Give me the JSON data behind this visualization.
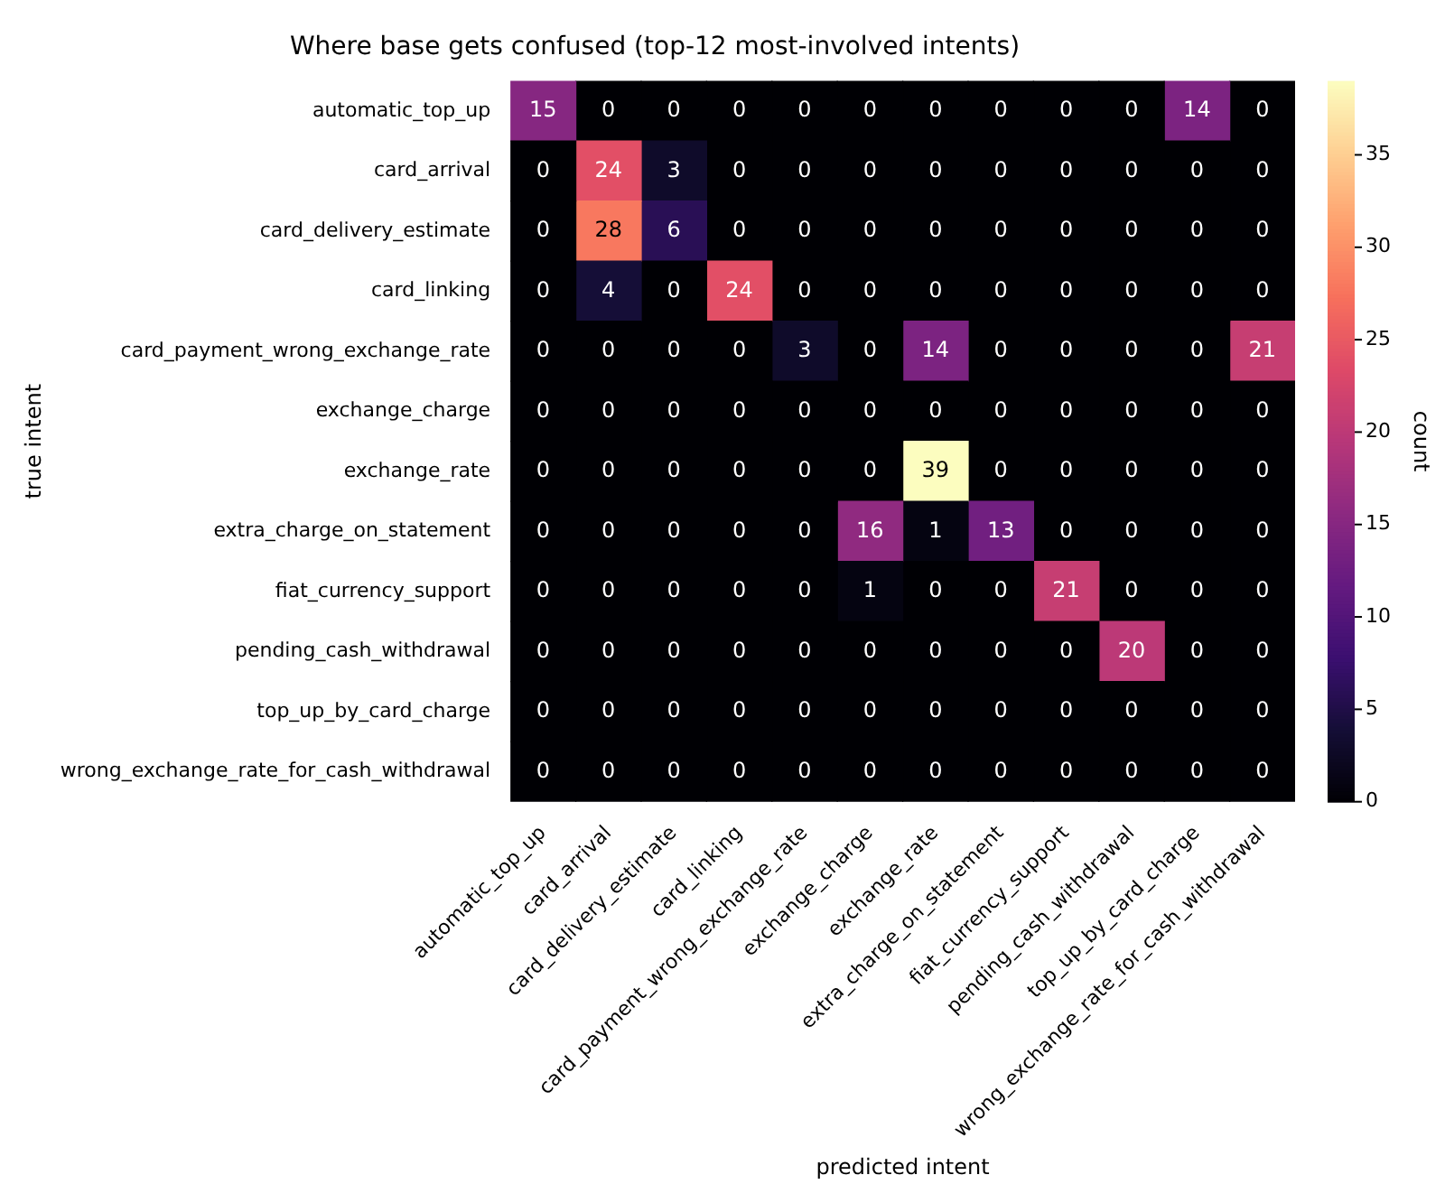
{
  "chart_data": {
    "type": "heatmap",
    "title": "Where base gets confused (top-12 most-involved intents)",
    "xlabel": "predicted intent",
    "ylabel": "true intent",
    "clabel": "count",
    "categories": [
      "automatic_top_up",
      "card_arrival",
      "card_delivery_estimate",
      "card_linking",
      "card_payment_wrong_exchange_rate",
      "exchange_charge",
      "exchange_rate",
      "extra_charge_on_statement",
      "fiat_currency_support",
      "pending_cash_withdrawal",
      "top_up_by_card_charge",
      "wrong_exchange_rate_for_cash_withdrawal"
    ],
    "y_categories": [
      "automatic_top_up",
      "card_arrival",
      "card_delivery_estimate",
      "card_linking",
      "card_payment_wrong_exchange_rate",
      "exchange_charge",
      "exchange_rate",
      "extra_charge_on_statement",
      "fiat_currency_support",
      "pending_cash_withdrawal",
      "top_up_by_card_charge",
      "wrong_exchange_rate_for_cash_withdrawal"
    ],
    "cells": [
      [
        15,
        0,
        0,
        0,
        0,
        0,
        0,
        0,
        0,
        0,
        14,
        0
      ],
      [
        0,
        24,
        3,
        0,
        0,
        0,
        0,
        0,
        0,
        0,
        0,
        0
      ],
      [
        0,
        28,
        6,
        0,
        0,
        0,
        0,
        0,
        0,
        0,
        0,
        0
      ],
      [
        0,
        4,
        0,
        24,
        0,
        0,
        0,
        0,
        0,
        0,
        0,
        0
      ],
      [
        0,
        0,
        0,
        0,
        3,
        0,
        14,
        0,
        0,
        0,
        0,
        21
      ],
      [
        0,
        0,
        0,
        0,
        0,
        0,
        0,
        0,
        0,
        0,
        0,
        0
      ],
      [
        0,
        0,
        0,
        0,
        0,
        0,
        39,
        0,
        0,
        0,
        0,
        0
      ],
      [
        0,
        0,
        0,
        0,
        0,
        16,
        1,
        13,
        0,
        0,
        0,
        0
      ],
      [
        0,
        0,
        0,
        0,
        0,
        1,
        0,
        0,
        21,
        0,
        0,
        0
      ],
      [
        0,
        0,
        0,
        0,
        0,
        0,
        0,
        0,
        0,
        20,
        0,
        0
      ],
      [
        0,
        0,
        0,
        0,
        0,
        0,
        0,
        0,
        0,
        0,
        0,
        0
      ],
      [
        0,
        0,
        0,
        0,
        0,
        0,
        0,
        0,
        0,
        0,
        0,
        0
      ]
    ],
    "data_labels": true,
    "clim": [
      0,
      39
    ],
    "cticks": [
      0,
      5,
      10,
      15,
      20,
      25,
      30,
      35
    ]
  }
}
